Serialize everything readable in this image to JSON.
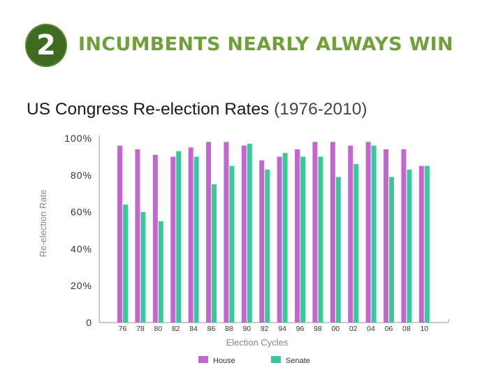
{
  "header": {
    "number": "2",
    "headline": "INCUMBENTS NEARLY ALWAYS WIN"
  },
  "colors": {
    "house": "#c266d0",
    "senate": "#3cc79a",
    "headline": "#6fa039",
    "badge": "#3e6b1f"
  },
  "chart_data": {
    "type": "bar",
    "title": "US Congress Re-election Rates",
    "subtitle": "(1976-2010)",
    "xlabel": "Election Cycles",
    "ylabel": "Re-election Rate",
    "ylim": [
      0,
      100
    ],
    "yticks": [
      0,
      20,
      40,
      60,
      80,
      100
    ],
    "ytick_labels": [
      "0",
      "20%",
      "40%",
      "60%",
      "80%",
      "100%"
    ],
    "categories": [
      "76",
      "78",
      "80",
      "82",
      "84",
      "86",
      "88",
      "90",
      "92",
      "94",
      "96",
      "98",
      "00",
      "02",
      "04",
      "06",
      "08",
      "10"
    ],
    "series": [
      {
        "name": "House",
        "values": [
          96,
          94,
          91,
          90,
          95,
          98,
          98,
          96,
          88,
          90,
          94,
          98,
          98,
          96,
          98,
          94,
          94,
          85
        ]
      },
      {
        "name": "Senate",
        "values": [
          64,
          60,
          55,
          93,
          90,
          75,
          85,
          97,
          83,
          92,
          90,
          90,
          79,
          86,
          96,
          79,
          83,
          85
        ]
      }
    ],
    "legend": [
      "House",
      "Senate"
    ],
    "legend_position": "bottom"
  }
}
